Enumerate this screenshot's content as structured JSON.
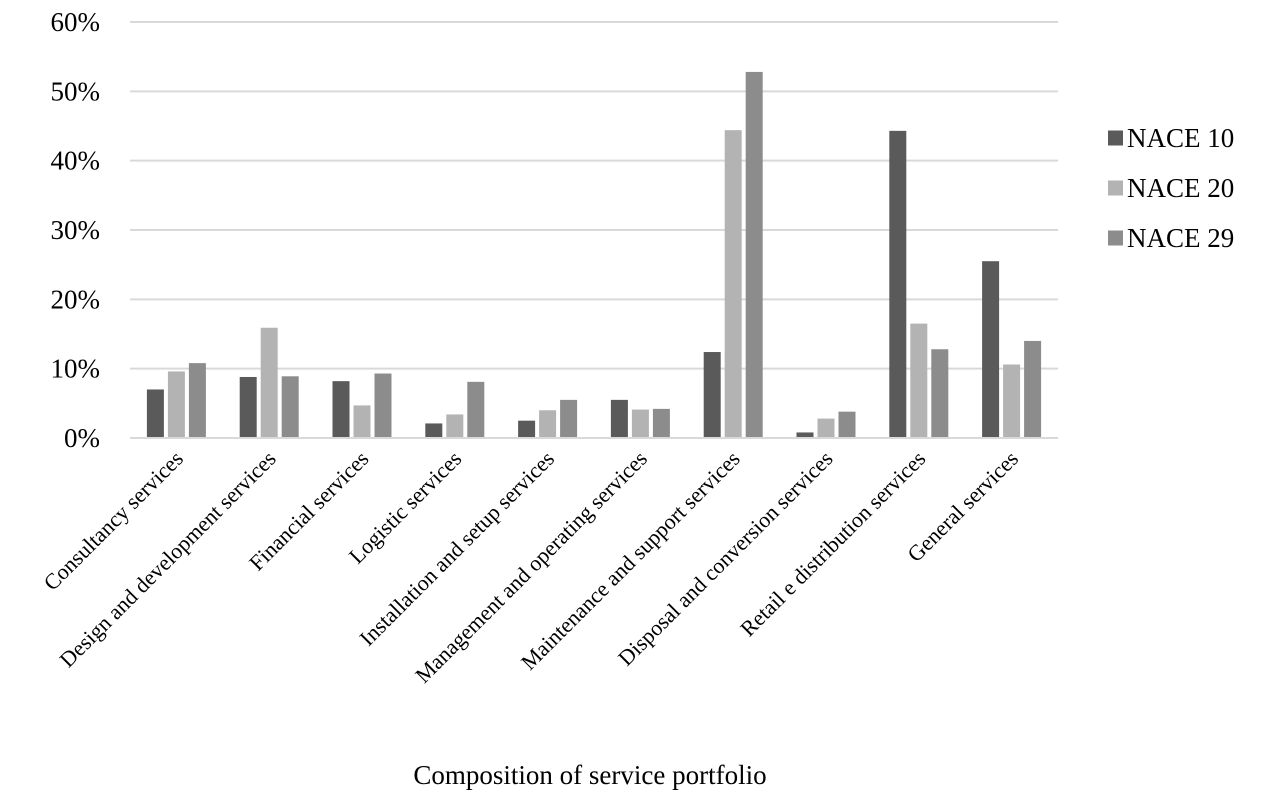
{
  "chart_data": {
    "type": "bar",
    "title": "",
    "xlabel": "Composition of service portfolio",
    "ylabel": "",
    "ylim": [
      0,
      60
    ],
    "yticks": [
      "0%",
      "10%",
      "20%",
      "30%",
      "40%",
      "50%",
      "60%"
    ],
    "grid": true,
    "legend_position": "right",
    "categories": [
      "Consultancy services",
      "Design and development services",
      "Financial services",
      "Logistic services",
      "Installation and setup services",
      "Management and operating services",
      "Maintenance and support services",
      "Disposal and conversion services",
      "Retail e distribution services",
      "General services"
    ],
    "series": [
      {
        "name": "NACE 10",
        "color": "#5a5a5a",
        "values": [
          7.0,
          8.8,
          8.2,
          2.1,
          2.5,
          5.5,
          12.4,
          0.8,
          44.3,
          25.5
        ]
      },
      {
        "name": "NACE 20",
        "color": "#b3b3b3",
        "values": [
          9.6,
          15.9,
          4.7,
          3.4,
          4.0,
          4.1,
          44.4,
          2.8,
          16.5,
          10.6
        ]
      },
      {
        "name": "NACE 29",
        "color": "#8c8c8c",
        "values": [
          10.8,
          8.9,
          9.3,
          8.1,
          5.5,
          4.2,
          52.8,
          3.8,
          12.8,
          14.0
        ]
      }
    ]
  }
}
